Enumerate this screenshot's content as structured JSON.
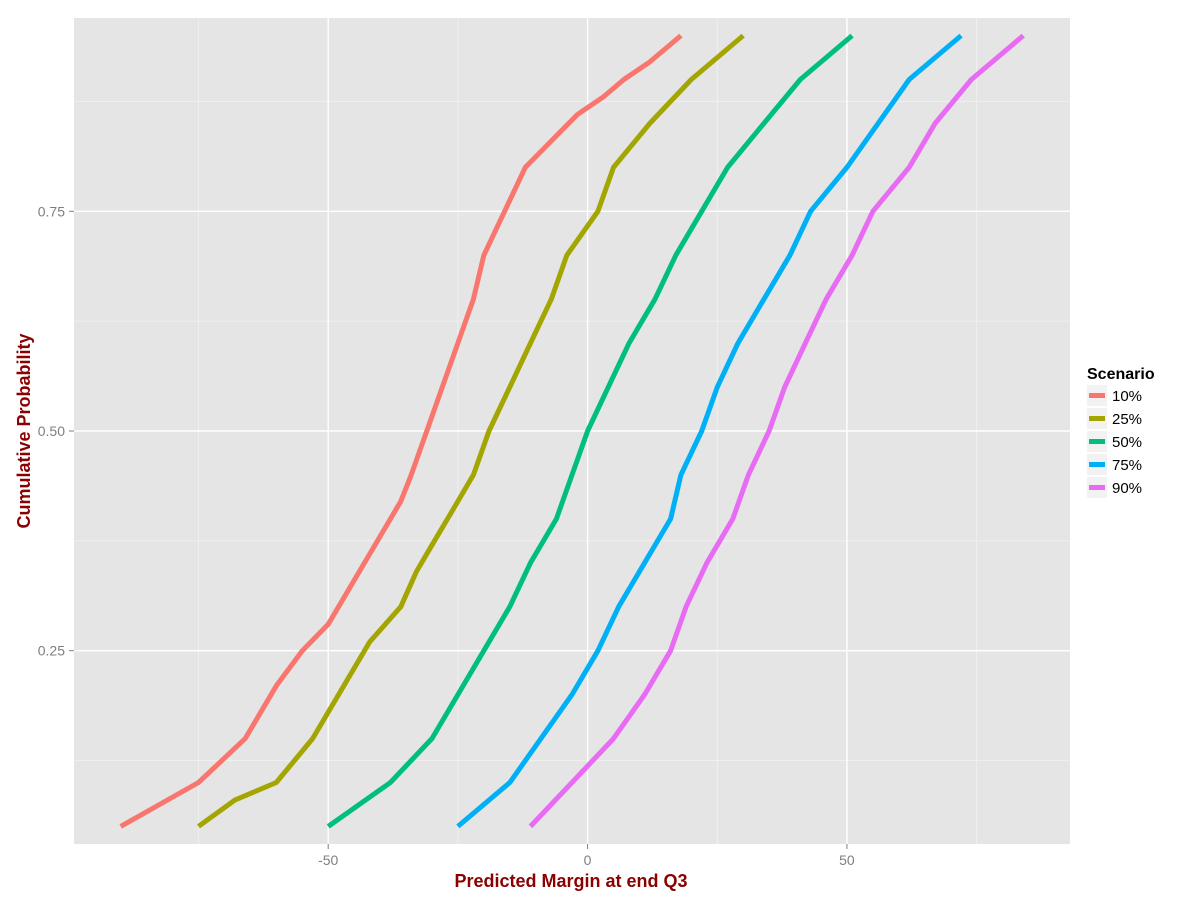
{
  "chart_data": {
    "type": "line",
    "title": "",
    "xlabel": "Predicted Margin at end Q3",
    "ylabel": "Cumulative Probability",
    "xlim": [
      -99,
      93
    ],
    "ylim": [
      0.03,
      0.97
    ],
    "x_ticks": [
      -50,
      0,
      50
    ],
    "y_ticks": [
      0.25,
      0.5,
      0.75
    ],
    "x_tick_labels": [
      "-50",
      "0",
      "50"
    ],
    "y_tick_labels": [
      "0.25",
      "0.50",
      "0.75"
    ],
    "grid": true,
    "legend": {
      "title": "Scenario",
      "position": "right"
    },
    "series": [
      {
        "name": "10%",
        "color": "#F8766D",
        "points": [
          [
            -90,
            0.05
          ],
          [
            -75,
            0.1
          ],
          [
            -66,
            0.15
          ],
          [
            -60,
            0.21
          ],
          [
            -55,
            0.25
          ],
          [
            -50,
            0.28
          ],
          [
            -48,
            0.3
          ],
          [
            -44,
            0.34
          ],
          [
            -40,
            0.38
          ],
          [
            -36,
            0.42
          ],
          [
            -34,
            0.45
          ],
          [
            -31,
            0.5
          ],
          [
            -28,
            0.55
          ],
          [
            -25,
            0.6
          ],
          [
            -22,
            0.65
          ],
          [
            -20,
            0.7
          ],
          [
            -16,
            0.75
          ],
          [
            -12,
            0.8
          ],
          [
            -7,
            0.83
          ],
          [
            -2,
            0.86
          ],
          [
            3,
            0.88
          ],
          [
            7,
            0.9
          ],
          [
            12,
            0.92
          ],
          [
            18,
            0.95
          ]
        ]
      },
      {
        "name": "25%",
        "color": "#A3A500",
        "points": [
          [
            -75,
            0.05
          ],
          [
            -68,
            0.08
          ],
          [
            -60,
            0.1
          ],
          [
            -53,
            0.15
          ],
          [
            -47,
            0.21
          ],
          [
            -42,
            0.26
          ],
          [
            -36,
            0.3
          ],
          [
            -33,
            0.34
          ],
          [
            -30,
            0.37
          ],
          [
            -26,
            0.41
          ],
          [
            -22,
            0.45
          ],
          [
            -19,
            0.5
          ],
          [
            -15,
            0.55
          ],
          [
            -11,
            0.6
          ],
          [
            -7,
            0.65
          ],
          [
            -4,
            0.7
          ],
          [
            2,
            0.75
          ],
          [
            5,
            0.8
          ],
          [
            12,
            0.85
          ],
          [
            20,
            0.9
          ],
          [
            30,
            0.95
          ]
        ]
      },
      {
        "name": "50%",
        "color": "#00BF7D",
        "points": [
          [
            -50,
            0.05
          ],
          [
            -38,
            0.1
          ],
          [
            -30,
            0.15
          ],
          [
            -25,
            0.2
          ],
          [
            -20,
            0.25
          ],
          [
            -15,
            0.3
          ],
          [
            -11,
            0.35
          ],
          [
            -6,
            0.4
          ],
          [
            -3,
            0.45
          ],
          [
            0,
            0.5
          ],
          [
            4,
            0.55
          ],
          [
            8,
            0.6
          ],
          [
            13,
            0.65
          ],
          [
            17,
            0.7
          ],
          [
            22,
            0.75
          ],
          [
            27,
            0.8
          ],
          [
            34,
            0.85
          ],
          [
            41,
            0.9
          ],
          [
            51,
            0.95
          ]
        ]
      },
      {
        "name": "75%",
        "color": "#00B0F6",
        "points": [
          [
            -25,
            0.05
          ],
          [
            -15,
            0.1
          ],
          [
            -9,
            0.15
          ],
          [
            -3,
            0.2
          ],
          [
            2,
            0.25
          ],
          [
            6,
            0.3
          ],
          [
            11,
            0.35
          ],
          [
            16,
            0.4
          ],
          [
            18,
            0.45
          ],
          [
            22,
            0.5
          ],
          [
            25,
            0.55
          ],
          [
            29,
            0.6
          ],
          [
            34,
            0.65
          ],
          [
            39,
            0.7
          ],
          [
            43,
            0.75
          ],
          [
            50,
            0.8
          ],
          [
            56,
            0.85
          ],
          [
            62,
            0.9
          ],
          [
            72,
            0.95
          ]
        ]
      },
      {
        "name": "90%",
        "color": "#E76BF3",
        "points": [
          [
            -11,
            0.05
          ],
          [
            -3,
            0.1
          ],
          [
            5,
            0.15
          ],
          [
            11,
            0.2
          ],
          [
            16,
            0.25
          ],
          [
            19,
            0.3
          ],
          [
            23,
            0.35
          ],
          [
            28,
            0.4
          ],
          [
            31,
            0.45
          ],
          [
            35,
            0.5
          ],
          [
            38,
            0.55
          ],
          [
            42,
            0.6
          ],
          [
            46,
            0.65
          ],
          [
            51,
            0.7
          ],
          [
            55,
            0.75
          ],
          [
            62,
            0.8
          ],
          [
            67,
            0.85
          ],
          [
            74,
            0.9
          ],
          [
            84,
            0.95
          ]
        ]
      }
    ]
  }
}
